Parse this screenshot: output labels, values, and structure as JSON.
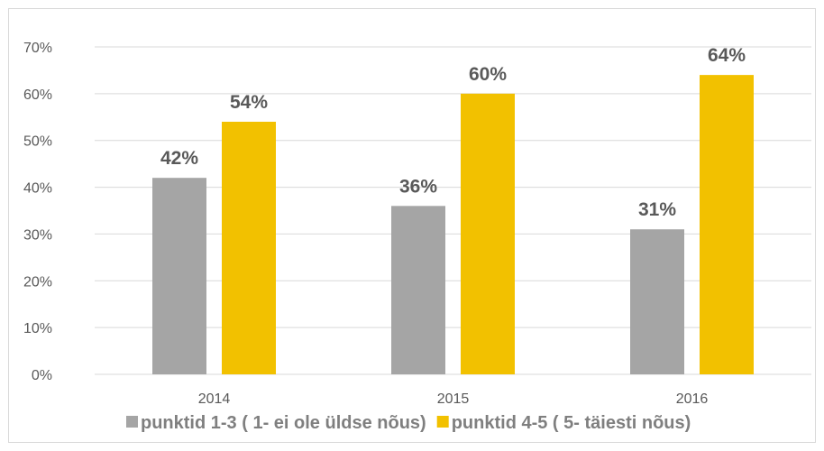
{
  "chart_data": {
    "type": "bar",
    "categories": [
      "2014",
      "2015",
      "2016"
    ],
    "series": [
      {
        "name": "punktid 1-3 ( 1- ei ole üldse nõus)",
        "values": [
          42,
          36,
          31
        ],
        "color": "#a5a5a5"
      },
      {
        "name": "punktid 4-5 ( 5- täiesti nõus)",
        "values": [
          54,
          60,
          64
        ],
        "color": "#f2c100"
      }
    ],
    "value_suffix": "%",
    "y_ticks": [
      "0%",
      "10%",
      "20%",
      "30%",
      "40%",
      "50%",
      "60%",
      "70%"
    ],
    "ylim": [
      0,
      70
    ],
    "grid": true,
    "legend_position": "bottom",
    "gridline_color": "#d9d9d9",
    "axis_color": "#d9d9d9"
  }
}
